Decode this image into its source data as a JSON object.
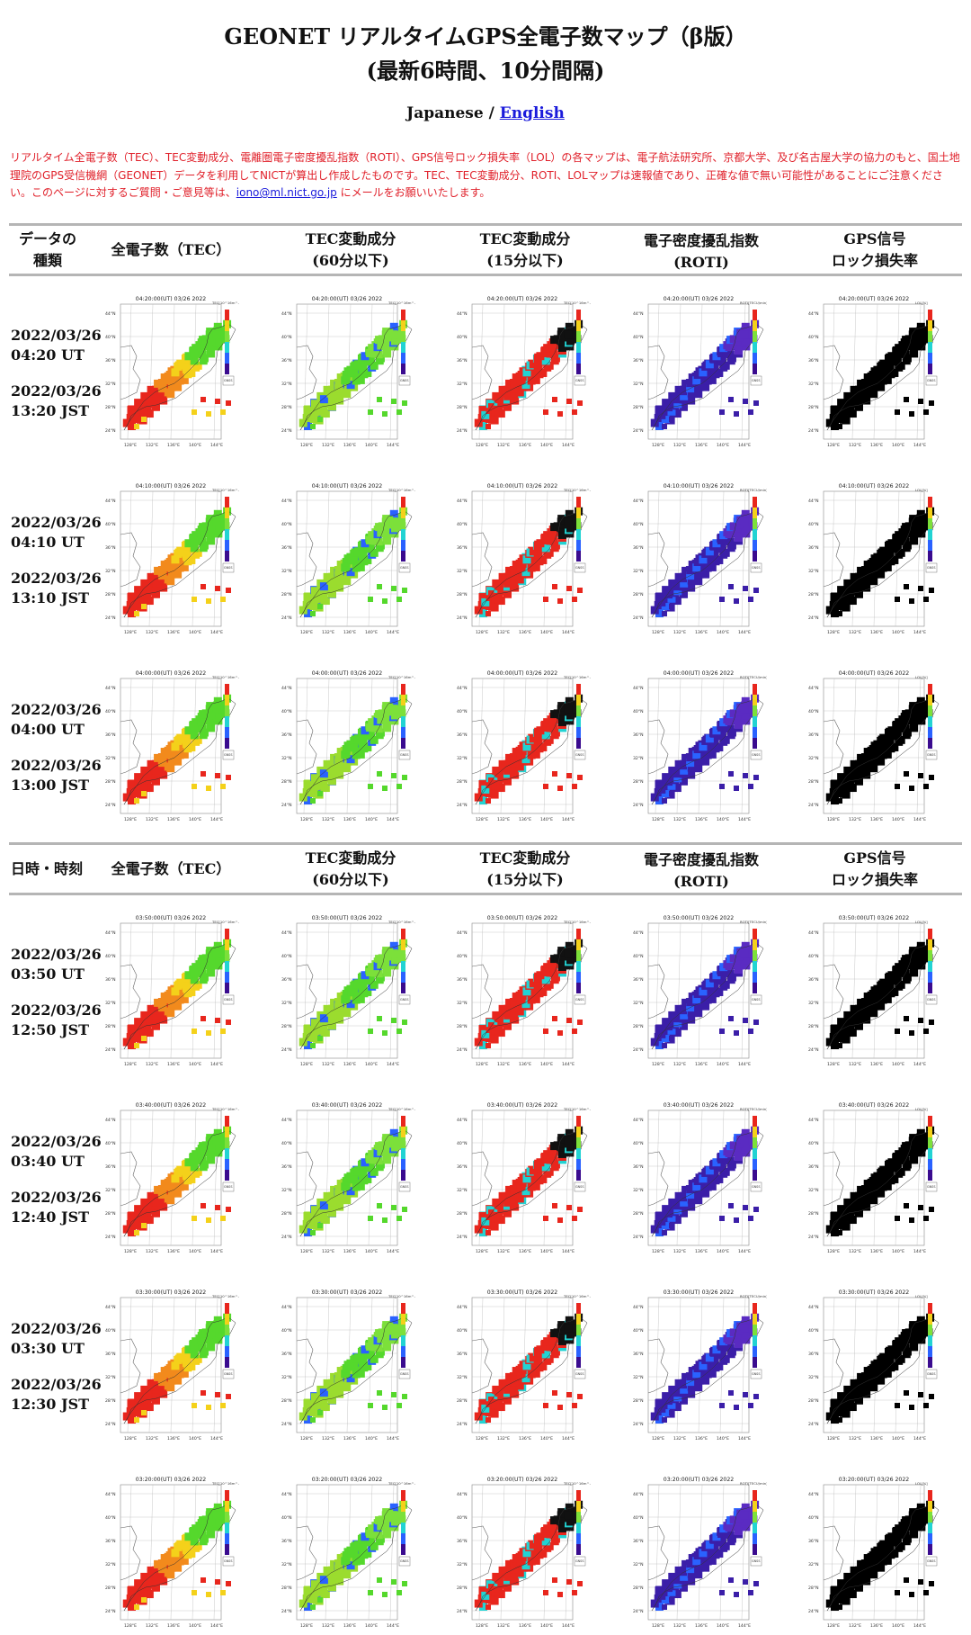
{
  "header": {
    "title_line1": "GEONET リアルタイムGPS全電子数マップ（β版）",
    "title_line2": "(最新6時間、10分間隔)",
    "lang_japanese": "Japanese",
    "lang_sep": " / ",
    "lang_english": "English"
  },
  "notice": {
    "text": "リアルタイム全電子数（TEC）、TEC変動成分、電離圏電子密度擾乱指数（ROTI）、GPS信号ロック損失率（LOL）の各マップは、電子航法研究所、京都大学、及び名古屋大学の協力のもと、国土地理院のGPS受信機網（GEONET）データを利用してNICTが算出し作成したものです。TEC、TEC変動成分、ROTI、LOLマップは速報値であり、正確な値で無い可能性があることにご注意ください。このページに対するご質問・ご意見等は、",
    "email": "iono@ml.nict.go.jp",
    "text_after": " にメールをお願いいたします。"
  },
  "table_header_1": {
    "col0_line1": "データの",
    "col0_line2": "種類",
    "col1": "全電子数（TEC）",
    "col2_line1": "TEC変動成分",
    "col2_line2": "(60分以下)",
    "col3_line1": "TEC変動成分",
    "col3_line2": "(15分以下)",
    "col4_line1": "電子密度擾乱指数",
    "col4_line2": "(ROTI)",
    "col5_line1": "GPS信号",
    "col5_line2": "ロック損失率"
  },
  "table_header_2": {
    "col0": "日時・時刻",
    "col1": "全電子数（TEC）",
    "col2_line1": "TEC変動成分",
    "col2_line2": "(60分以下)",
    "col3_line1": "TEC変動成分",
    "col3_line2": "(15分以下)",
    "col4_line1": "電子密度擾乱指数",
    "col4_line2": "(ROTI)",
    "col5_line1": "GPS信号",
    "col5_line2": "ロック損失率"
  },
  "rows": [
    {
      "ut": "2022/03/26\n04:20 UT",
      "jst": "2022/03/26\n13:20 JST",
      "map_title": "04:20:00(UT) 03/26 2022"
    },
    {
      "ut": "2022/03/26\n04:10 UT",
      "jst": "2022/03/26\n13:10 JST",
      "map_title": "04:10:00(UT) 03/26 2022"
    },
    {
      "ut": "2022/03/26\n04:00 UT",
      "jst": "2022/03/26\n13:00 JST",
      "map_title": "04:00:00(UT) 03/26 2022"
    },
    {
      "ut": "2022/03/26\n03:50 UT",
      "jst": "2022/03/26\n12:50 JST",
      "map_title": "03:50:00(UT) 03/26 2022"
    },
    {
      "ut": "2022/03/26\n03:40 UT",
      "jst": "2022/03/26\n12:40 JST",
      "map_title": "03:40:00(UT) 03/26 2022"
    },
    {
      "ut": "2022/03/26\n03:30 UT",
      "jst": "2022/03/26\n12:30 JST",
      "map_title": "03:30:00(UT) 03/26 2022"
    },
    {
      "ut": "",
      "jst": "",
      "map_title": "03:20:00(UT) 03/26 2022"
    }
  ],
  "map_axes": {
    "lat_ticks": [
      "44°N",
      "40°N",
      "36°N",
      "32°N",
      "28°N",
      "24°N"
    ],
    "lon_ticks": [
      "128°E",
      "132°E",
      "136°E",
      "140°E",
      "144°E"
    ],
    "colorbar_labels": [
      "TEC[10^16m^-2]",
      "TEC[10^16m^-2]",
      "TEC[10^16m^-2]",
      "ROTI[TECU/min]",
      "LOL[%]"
    ],
    "source_badge": "GNSS"
  },
  "colors": {
    "notice_red": "#e0202a",
    "link_blue": "#1a1adb",
    "rule_gray": "#b5b5b5",
    "tec_high": "#e8261d",
    "tec_mid": "#f4d11a",
    "tec_low": "#55d82c",
    "roti": "#3b1ea8",
    "lol": "#000000"
  }
}
